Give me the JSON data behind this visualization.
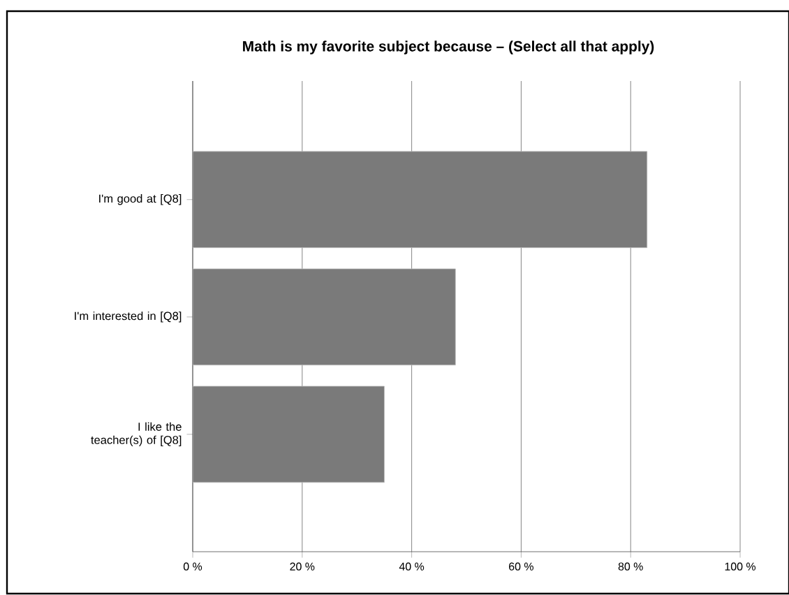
{
  "chart_data": {
    "type": "bar",
    "orientation": "horizontal",
    "title": "Math is my favorite subject because – (Select all that apply)",
    "categories": [
      "I'm good at [Q8]",
      "I'm interested in [Q8]",
      "I like the teacher(s) of [Q8]"
    ],
    "values": [
      83,
      48,
      35
    ],
    "color": "#7a7a7a",
    "xlim": [
      0,
      100
    ],
    "xticks": [
      {
        "value": 0,
        "label": "0 %"
      },
      {
        "value": 20,
        "label": "20 %"
      },
      {
        "value": 40,
        "label": "40 %"
      },
      {
        "value": 60,
        "label": "60 %"
      },
      {
        "value": 80,
        "label": "80 %"
      },
      {
        "value": 100,
        "label": "100 %"
      }
    ],
    "grid": "x"
  }
}
